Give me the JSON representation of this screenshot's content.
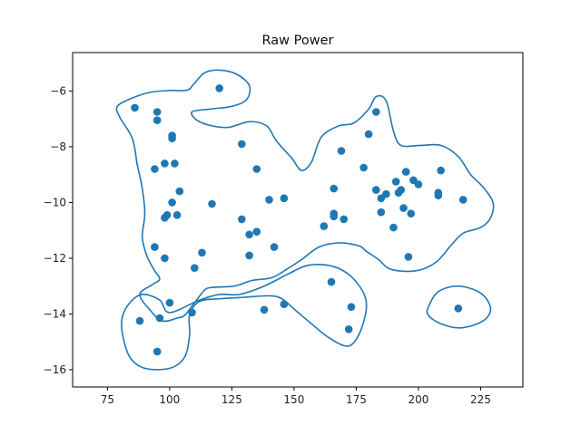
{
  "chart_data": {
    "type": "scatter",
    "title": "Raw Power",
    "xlabel": "",
    "ylabel": "",
    "xlim": [
      61,
      242
    ],
    "ylim": [
      -16.62,
      -4.62
    ],
    "xticks": [
      75,
      100,
      125,
      150,
      175,
      200,
      225
    ],
    "yticks": [
      -16,
      -14,
      -12,
      -10,
      -8,
      -6
    ],
    "grid": false,
    "point_color": "#1f77b4",
    "contour_color": "#1f77b4",
    "points": [
      {
        "x": 86,
        "y": -6.6
      },
      {
        "x": 95,
        "y": -6.75
      },
      {
        "x": 95,
        "y": -7.05
      },
      {
        "x": 120,
        "y": -5.9
      },
      {
        "x": 101,
        "y": -7.6
      },
      {
        "x": 101,
        "y": -7.7
      },
      {
        "x": 94,
        "y": -8.8
      },
      {
        "x": 98,
        "y": -8.6
      },
      {
        "x": 102,
        "y": -8.6
      },
      {
        "x": 104,
        "y": -9.6
      },
      {
        "x": 101,
        "y": -10.0
      },
      {
        "x": 99,
        "y": -10.45
      },
      {
        "x": 98,
        "y": -10.55
      },
      {
        "x": 103,
        "y": -10.45
      },
      {
        "x": 117,
        "y": -10.05
      },
      {
        "x": 94,
        "y": -11.6
      },
      {
        "x": 98,
        "y": -12.0
      },
      {
        "x": 113,
        "y": -11.8
      },
      {
        "x": 110,
        "y": -12.35
      },
      {
        "x": 100,
        "y": -13.6
      },
      {
        "x": 88,
        "y": -14.25
      },
      {
        "x": 96,
        "y": -14.15
      },
      {
        "x": 109,
        "y": -13.95
      },
      {
        "x": 95,
        "y": -15.35
      },
      {
        "x": 129,
        "y": -7.9
      },
      {
        "x": 135,
        "y": -8.8
      },
      {
        "x": 129,
        "y": -10.6
      },
      {
        "x": 132,
        "y": -11.15
      },
      {
        "x": 135,
        "y": -11.05
      },
      {
        "x": 140,
        "y": -9.9
      },
      {
        "x": 146,
        "y": -9.85
      },
      {
        "x": 132,
        "y": -11.9
      },
      {
        "x": 142,
        "y": -11.6
      },
      {
        "x": 138,
        "y": -13.85
      },
      {
        "x": 146,
        "y": -13.65
      },
      {
        "x": 165,
        "y": -12.85
      },
      {
        "x": 173,
        "y": -13.75
      },
      {
        "x": 172,
        "y": -14.55
      },
      {
        "x": 169,
        "y": -8.15
      },
      {
        "x": 166,
        "y": -9.5
      },
      {
        "x": 166,
        "y": -10.4
      },
      {
        "x": 166,
        "y": -10.5
      },
      {
        "x": 170,
        "y": -10.6
      },
      {
        "x": 162,
        "y": -10.85
      },
      {
        "x": 183,
        "y": -6.75
      },
      {
        "x": 180,
        "y": -7.55
      },
      {
        "x": 178,
        "y": -8.75
      },
      {
        "x": 183,
        "y": -9.55
      },
      {
        "x": 185,
        "y": -9.85
      },
      {
        "x": 187,
        "y": -9.7
      },
      {
        "x": 185,
        "y": -10.35
      },
      {
        "x": 190,
        "y": -10.9
      },
      {
        "x": 191,
        "y": -9.25
      },
      {
        "x": 192,
        "y": -9.65
      },
      {
        "x": 193,
        "y": -9.55
      },
      {
        "x": 195,
        "y": -8.9
      },
      {
        "x": 198,
        "y": -9.2
      },
      {
        "x": 200,
        "y": -9.35
      },
      {
        "x": 194,
        "y": -10.2
      },
      {
        "x": 197,
        "y": -10.4
      },
      {
        "x": 196,
        "y": -11.95
      },
      {
        "x": 209,
        "y": -8.85
      },
      {
        "x": 208,
        "y": -9.65
      },
      {
        "x": 208,
        "y": -9.75
      },
      {
        "x": 218,
        "y": -9.9
      },
      {
        "x": 216,
        "y": -13.8
      }
    ],
    "contours": [
      {
        "closed": true,
        "path": [
          [
            92,
            -6.05
          ],
          [
            100,
            -5.98
          ],
          [
            107,
            -5.97
          ],
          [
            110,
            -5.72
          ],
          [
            114,
            -5.35
          ],
          [
            120,
            -5.25
          ],
          [
            127,
            -5.4
          ],
          [
            132,
            -5.8
          ],
          [
            131,
            -6.3
          ],
          [
            125,
            -6.55
          ],
          [
            116,
            -6.65
          ],
          [
            109,
            -6.75
          ],
          [
            111,
            -7.05
          ],
          [
            117,
            -7.25
          ],
          [
            124,
            -7.3
          ],
          [
            132,
            -7.1
          ],
          [
            139,
            -7.25
          ],
          [
            143,
            -7.8
          ],
          [
            149,
            -8.4
          ],
          [
            153,
            -8.85
          ],
          [
            157,
            -8.55
          ],
          [
            161,
            -7.65
          ],
          [
            168,
            -7.25
          ],
          [
            174,
            -7.15
          ],
          [
            180,
            -6.65
          ],
          [
            183,
            -6.2
          ],
          [
            187,
            -6.35
          ],
          [
            190,
            -7.45
          ],
          [
            193,
            -7.95
          ],
          [
            201,
            -7.95
          ],
          [
            209,
            -7.95
          ],
          [
            216,
            -8.35
          ],
          [
            221,
            -9.0
          ],
          [
            226,
            -9.45
          ],
          [
            230,
            -10.0
          ],
          [
            229,
            -10.55
          ],
          [
            225,
            -10.9
          ],
          [
            218,
            -11.1
          ],
          [
            213,
            -11.55
          ],
          [
            207,
            -12.15
          ],
          [
            199,
            -12.45
          ],
          [
            189,
            -12.4
          ],
          [
            184,
            -12.05
          ],
          [
            179,
            -11.75
          ],
          [
            176,
            -11.55
          ],
          [
            168,
            -11.45
          ],
          [
            160,
            -11.6
          ],
          [
            153,
            -12.05
          ],
          [
            147,
            -12.4
          ],
          [
            141,
            -12.7
          ],
          [
            133,
            -12.8
          ],
          [
            126,
            -13.0
          ],
          [
            117,
            -13.05
          ],
          [
            114,
            -13.15
          ],
          [
            110,
            -13.6
          ],
          [
            106,
            -14.05
          ],
          [
            103,
            -14.15
          ],
          [
            97,
            -14.25
          ],
          [
            92,
            -13.85
          ],
          [
            88,
            -13.3
          ],
          [
            93,
            -12.95
          ],
          [
            96,
            -12.75
          ],
          [
            94,
            -12.45
          ],
          [
            91,
            -11.95
          ],
          [
            89,
            -11.25
          ],
          [
            90,
            -10.4
          ],
          [
            89,
            -9.5
          ],
          [
            87,
            -8.65
          ],
          [
            85,
            -7.7
          ],
          [
            80,
            -6.95
          ],
          [
            79,
            -6.55
          ],
          [
            85,
            -6.25
          ]
        ]
      },
      {
        "closed": true,
        "path": [
          [
            100,
            -13.95
          ],
          [
            112,
            -13.5
          ],
          [
            120,
            -13.3
          ],
          [
            128,
            -13.3
          ],
          [
            138,
            -13.0
          ],
          [
            148,
            -12.55
          ],
          [
            156,
            -12.25
          ],
          [
            166,
            -12.3
          ],
          [
            174,
            -12.75
          ],
          [
            179,
            -13.55
          ],
          [
            177,
            -14.55
          ],
          [
            172,
            -15.15
          ],
          [
            164,
            -14.85
          ],
          [
            157,
            -14.35
          ],
          [
            151,
            -13.9
          ],
          [
            145,
            -13.45
          ],
          [
            140,
            -13.35
          ],
          [
            130,
            -13.4
          ],
          [
            121,
            -13.45
          ],
          [
            112,
            -13.55
          ],
          [
            108,
            -14.05
          ],
          [
            108,
            -14.75
          ],
          [
            106,
            -15.55
          ],
          [
            100,
            -15.95
          ],
          [
            90,
            -15.95
          ],
          [
            84,
            -15.55
          ],
          [
            81,
            -14.7
          ],
          [
            81,
            -14.1
          ],
          [
            84,
            -13.6
          ],
          [
            89,
            -13.3
          ],
          [
            96,
            -13.5
          ]
        ]
      },
      {
        "closed": true,
        "path": [
          [
            204,
            -13.75
          ],
          [
            208,
            -13.2
          ],
          [
            216,
            -13.0
          ],
          [
            225,
            -13.25
          ],
          [
            229,
            -13.8
          ],
          [
            226,
            -14.25
          ],
          [
            217,
            -14.5
          ],
          [
            209,
            -14.35
          ],
          [
            204,
            -14.05
          ]
        ]
      }
    ]
  }
}
